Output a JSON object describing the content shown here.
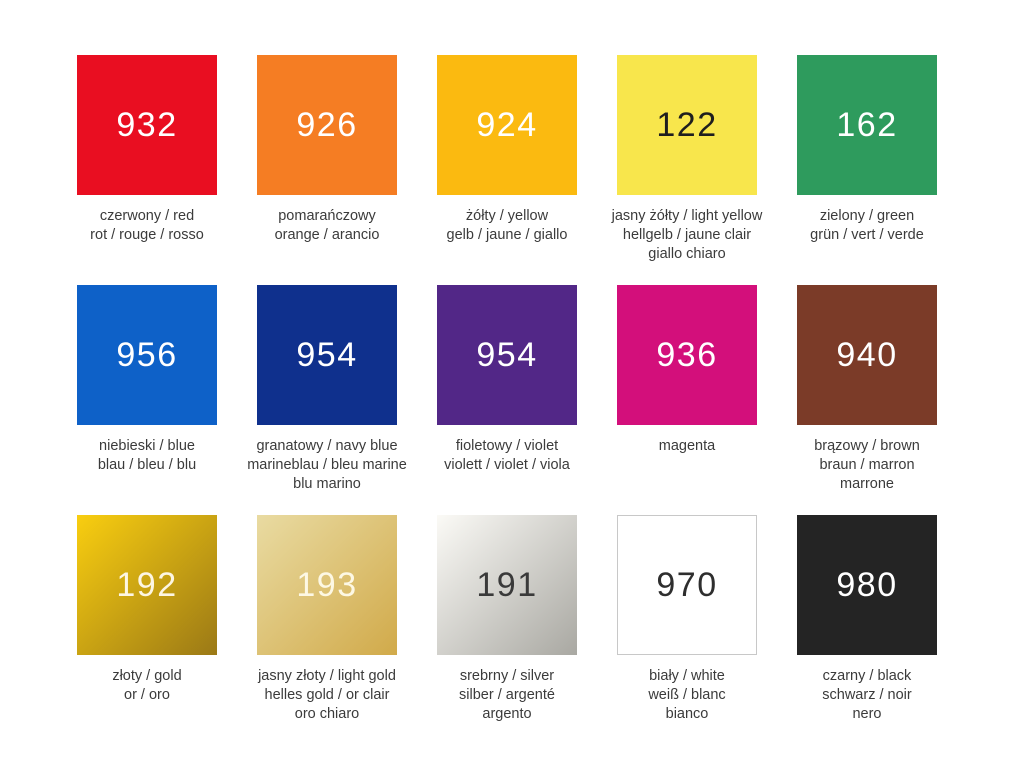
{
  "page": {
    "background": "#ffffff",
    "label_text_color": "#3b3b3b",
    "gradient_direction": "135deg"
  },
  "swatches": [
    {
      "code": "932",
      "fill": "#e90e21",
      "code_color": "#ffffff",
      "labels": [
        "czerwony / red",
        "rot / rouge / rosso"
      ]
    },
    {
      "code": "926",
      "fill": "#f57d23",
      "code_color": "#ffffff",
      "labels": [
        "pomarańczowy",
        "orange / arancio"
      ]
    },
    {
      "code": "924",
      "fill": "#fbba10",
      "code_color": "#ffffff",
      "labels": [
        "żółty / yellow",
        "gelb / jaune / giallo"
      ]
    },
    {
      "code": "122",
      "fill": "#f8e64c",
      "code_color": "#1e1e1e",
      "labels": [
        "jasny żółty / light yellow",
        "hellgelb / jaune clair",
        "giallo chiaro"
      ]
    },
    {
      "code": "162",
      "fill": "#2e9b5d",
      "code_color": "#ffffff",
      "labels": [
        "zielony / green",
        "grün / vert / verde"
      ]
    },
    {
      "code": "956",
      "fill": "#0e61c8",
      "code_color": "#ffffff",
      "labels": [
        "niebieski / blue",
        "blau / bleu / blu"
      ]
    },
    {
      "code": "954",
      "fill": "#0f308d",
      "code_color": "#ffffff",
      "labels": [
        "granatowy / navy blue",
        "marineblau / bleu marine",
        "blu marino"
      ]
    },
    {
      "code": "954",
      "fill": "#522787",
      "code_color": "#ffffff",
      "labels": [
        "fioletowy / violet",
        "violett / violet / viola"
      ]
    },
    {
      "code": "936",
      "fill": "#d30f7b",
      "code_color": "#ffffff",
      "labels": [
        "magenta"
      ]
    },
    {
      "code": "940",
      "fill": "#7b3b28",
      "code_color": "#ffffff",
      "labels": [
        "brązowy / brown",
        "braun / marron",
        "marrone"
      ]
    },
    {
      "code": "192",
      "gradient_from": "#f9ce10",
      "gradient_to": "#9b7916",
      "code_color": "#fdf6e3",
      "labels": [
        "złoty / gold",
        "or / oro"
      ]
    },
    {
      "code": "193",
      "gradient_from": "#e9dba2",
      "gradient_to": "#d1aa4a",
      "code_color": "#fdf8e4",
      "labels": [
        "jasny złoty / light gold",
        "helles gold / or clair",
        "oro chiaro"
      ]
    },
    {
      "code": "191",
      "gradient_from": "#fbfaf6",
      "gradient_to": "#a9a8a2",
      "code_color": "#3a3a3a",
      "labels": [
        "srebrny / silver",
        "silber / argenté",
        "argento"
      ]
    },
    {
      "code": "970",
      "fill": "#ffffff",
      "border_color": "#c8c8c8",
      "code_color": "#2e2e2e",
      "labels": [
        "biały / white",
        "weiß / blanc",
        "bianco"
      ]
    },
    {
      "code": "980",
      "fill": "#242424",
      "code_color": "#ffffff",
      "labels": [
        "czarny / black",
        "schwarz / noir",
        "nero"
      ]
    }
  ]
}
